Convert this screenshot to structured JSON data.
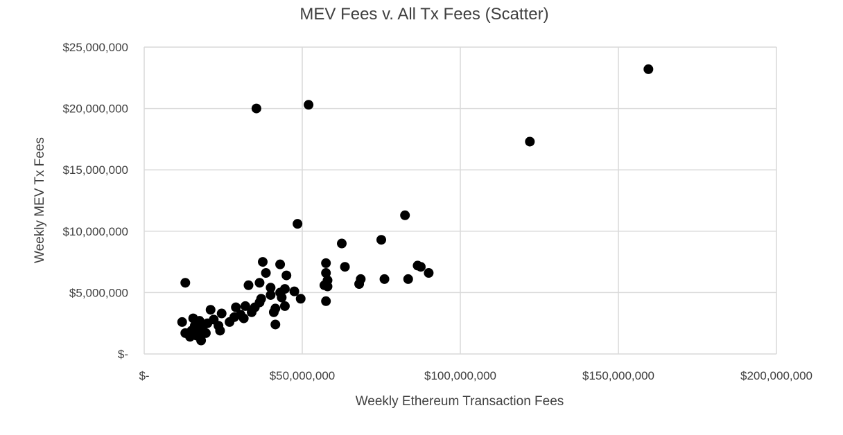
{
  "chart_data": {
    "type": "scatter",
    "title": "MEV Fees v. All Tx Fees (Scatter)",
    "xlabel": "Weekly Ethereum Transaction Fees",
    "ylabel": "Weekly MEV Tx Fees",
    "xlim": [
      0,
      200000000
    ],
    "ylim": [
      0,
      25000000
    ],
    "x_ticks": [
      0,
      50000000,
      100000000,
      150000000,
      200000000
    ],
    "x_tick_labels": [
      "$-",
      "$50,000,000",
      "$100,000,000",
      "$150,000,000",
      "$200,000,000"
    ],
    "y_ticks": [
      0,
      5000000,
      10000000,
      15000000,
      20000000,
      25000000
    ],
    "y_tick_labels": [
      "$-",
      "$5,000,000",
      "$10,000,000",
      "$15,000,000",
      "$20,000,000",
      "$25,000,000"
    ],
    "grid": true,
    "marker_color": "#000000",
    "points": [
      [
        12000000,
        2600000
      ],
      [
        13000000,
        1700000
      ],
      [
        13000000,
        5800000
      ],
      [
        14500000,
        1400000
      ],
      [
        15000000,
        1900000
      ],
      [
        15500000,
        2900000
      ],
      [
        16000000,
        2300000
      ],
      [
        16500000,
        1500000
      ],
      [
        17000000,
        2100000
      ],
      [
        17500000,
        2700000
      ],
      [
        18000000,
        1100000
      ],
      [
        18500000,
        1800000
      ],
      [
        19000000,
        2400000
      ],
      [
        19500000,
        1700000
      ],
      [
        20000000,
        2500000
      ],
      [
        21000000,
        3600000
      ],
      [
        22000000,
        2800000
      ],
      [
        23500000,
        2300000
      ],
      [
        24000000,
        1900000
      ],
      [
        24500000,
        3300000
      ],
      [
        27000000,
        2600000
      ],
      [
        28500000,
        3000000
      ],
      [
        29000000,
        3800000
      ],
      [
        30500000,
        3200000
      ],
      [
        31500000,
        2900000
      ],
      [
        32000000,
        3900000
      ],
      [
        33000000,
        5600000
      ],
      [
        34000000,
        3400000
      ],
      [
        35000000,
        3800000
      ],
      [
        35500000,
        20000000
      ],
      [
        36500000,
        4200000
      ],
      [
        36500000,
        5800000
      ],
      [
        37000000,
        4500000
      ],
      [
        37500000,
        7500000
      ],
      [
        38500000,
        6600000
      ],
      [
        40000000,
        5400000
      ],
      [
        40000000,
        4800000
      ],
      [
        41000000,
        3400000
      ],
      [
        41500000,
        3700000
      ],
      [
        41500000,
        2400000
      ],
      [
        43000000,
        7300000
      ],
      [
        43000000,
        5000000
      ],
      [
        43500000,
        4600000
      ],
      [
        44500000,
        3900000
      ],
      [
        44500000,
        5300000
      ],
      [
        45000000,
        6400000
      ],
      [
        47500000,
        5100000
      ],
      [
        48500000,
        10600000
      ],
      [
        49500000,
        4500000
      ],
      [
        52000000,
        20300000
      ],
      [
        57000000,
        5600000
      ],
      [
        57500000,
        4300000
      ],
      [
        57500000,
        7400000
      ],
      [
        57500000,
        6600000
      ],
      [
        58000000,
        6000000
      ],
      [
        58000000,
        5500000
      ],
      [
        62500000,
        9000000
      ],
      [
        63500000,
        7100000
      ],
      [
        68000000,
        5700000
      ],
      [
        68500000,
        6100000
      ],
      [
        75000000,
        9300000
      ],
      [
        76000000,
        6100000
      ],
      [
        82500000,
        11300000
      ],
      [
        83500000,
        6100000
      ],
      [
        86500000,
        7200000
      ],
      [
        87500000,
        7100000
      ],
      [
        90000000,
        6600000
      ],
      [
        122000000,
        17300000
      ],
      [
        159500000,
        23200000
      ]
    ]
  }
}
